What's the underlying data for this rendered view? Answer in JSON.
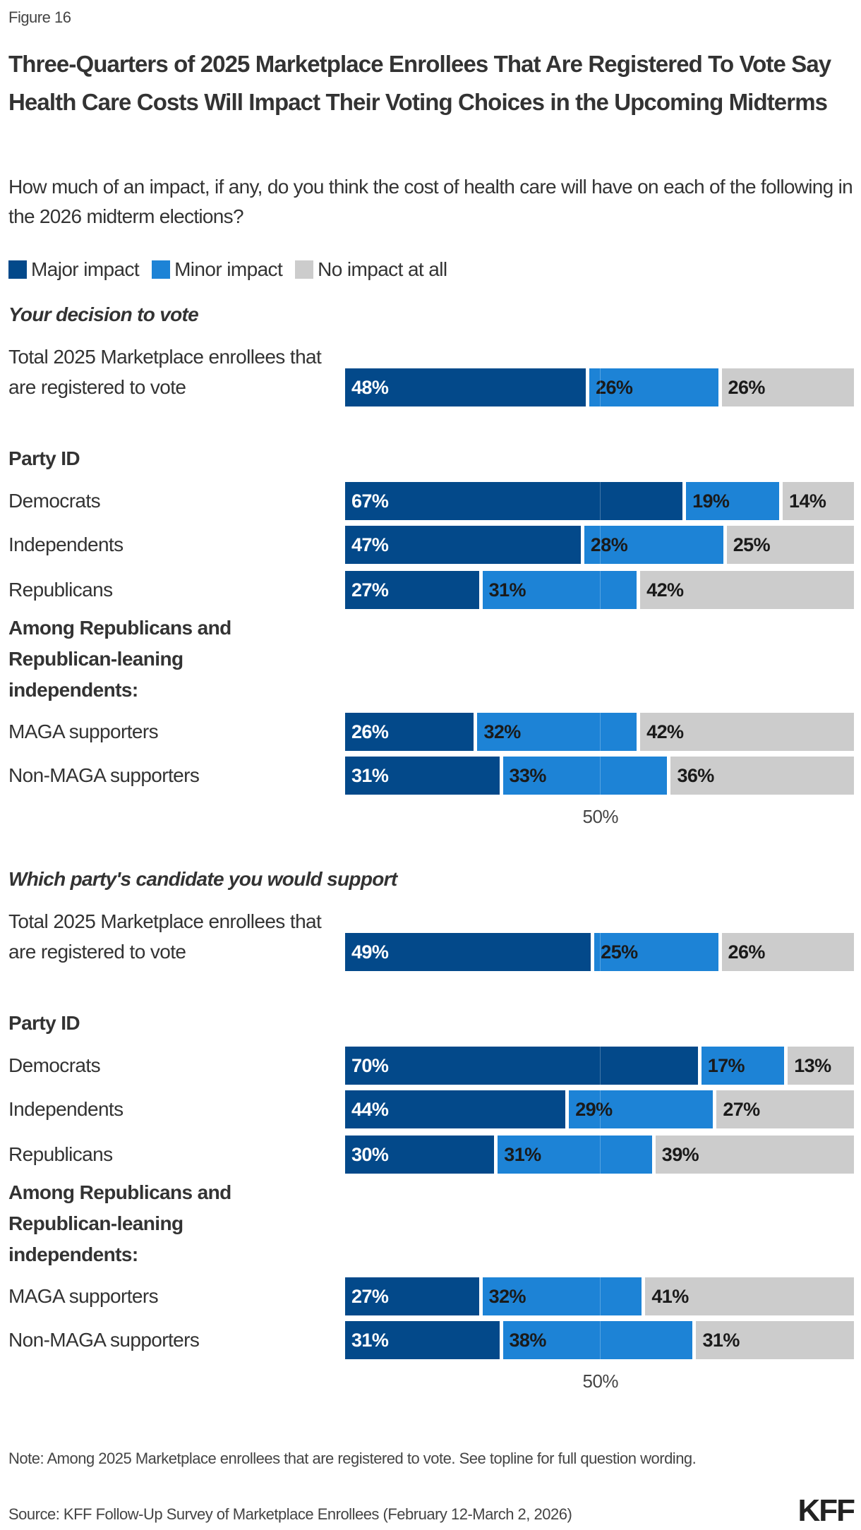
{
  "figure_label": "Figure 16",
  "title": "Three-Quarters of 2025 Marketplace Enrollees That Are Registered To Vote Say Health Care Costs Will Impact Their Voting Choices in the Upcoming Midterms",
  "subtitle": "How much of an impact, if any, do you think the cost of health care will have on each of the following in the 2026 midterm elections?",
  "colors": {
    "major": "#03498a",
    "minor": "#1d83d6",
    "none": "#cccccc"
  },
  "chart_data": {
    "type": "bar",
    "orientation": "horizontal",
    "stacked": true,
    "legend": [
      "Major impact",
      "Minor impact",
      "No impact at all"
    ],
    "legend_placement": "top-left",
    "xlim": [
      0,
      100
    ],
    "tick_label": "50%",
    "panels": [
      {
        "title": "Your decision to vote",
        "groups": [
          {
            "heading": "",
            "rows": [
              {
                "label": "Total 2025 Marketplace enrollees that are registered to vote",
                "values": [
                  48,
                  26,
                  26
                ]
              }
            ]
          },
          {
            "heading": "Party ID",
            "rows": [
              {
                "label": "Democrats",
                "values": [
                  67,
                  19,
                  14
                ]
              },
              {
                "label": "Independents",
                "values": [
                  47,
                  28,
                  25
                ]
              },
              {
                "label": "Republicans",
                "values": [
                  27,
                  31,
                  42
                ]
              }
            ]
          },
          {
            "heading": "Among Republicans and Republican-leaning independents:",
            "rows": [
              {
                "label": "MAGA supporters",
                "values": [
                  26,
                  32,
                  42
                ]
              },
              {
                "label": "Non-MAGA supporters",
                "values": [
                  31,
                  33,
                  36
                ]
              }
            ]
          }
        ]
      },
      {
        "title": "Which party's candidate you would support",
        "groups": [
          {
            "heading": "",
            "rows": [
              {
                "label": "Total 2025 Marketplace enrollees that are registered to vote",
                "values": [
                  49,
                  25,
                  26
                ]
              }
            ]
          },
          {
            "heading": "Party ID",
            "rows": [
              {
                "label": "Democrats",
                "values": [
                  70,
                  17,
                  13
                ]
              },
              {
                "label": "Independents",
                "values": [
                  44,
                  29,
                  27
                ]
              },
              {
                "label": "Republicans",
                "values": [
                  30,
                  31,
                  39
                ]
              }
            ]
          },
          {
            "heading": "Among Republicans and Republican-leaning independents:",
            "rows": [
              {
                "label": "MAGA supporters",
                "values": [
                  27,
                  32,
                  41
                ]
              },
              {
                "label": "Non-MAGA supporters",
                "values": [
                  31,
                  38,
                  31
                ]
              }
            ]
          }
        ]
      }
    ]
  },
  "note": "Note: Among 2025 Marketplace enrollees that are registered to vote. See topline for full question wording.",
  "source": "Source: KFF Follow-Up Survey of Marketplace Enrollees (February 12-March 2, 2026)",
  "logo": "KFF"
}
